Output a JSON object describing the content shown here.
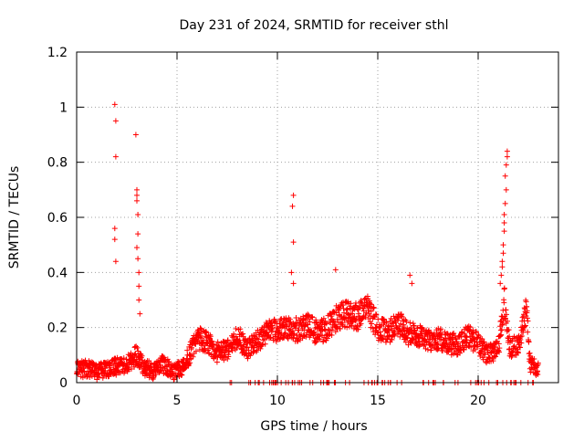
{
  "chart_data": {
    "type": "scatter",
    "title": "Day 231 of 2024, SRMTID for receiver sthl",
    "xlabel": "GPS time / hours",
    "ylabel": "SRMTID / TECUs",
    "xlim": [
      0,
      24
    ],
    "ylim": [
      0,
      1.2
    ],
    "x_ticks": [
      0,
      5,
      10,
      15,
      20
    ],
    "x_tick_labels": [
      "0",
      "5",
      "10",
      "15",
      "20"
    ],
    "y_ticks": [
      0,
      0.2,
      0.4,
      0.6,
      0.8,
      1.0,
      1.2
    ],
    "y_tick_labels": [
      "0",
      "0.2",
      "0.4",
      "0.6",
      "0.8",
      "1",
      "1.2"
    ],
    "grid": true,
    "marker": "+",
    "series_color": "#ff0000",
    "profile": [
      [
        0.0,
        0.05
      ],
      [
        0.5,
        0.05
      ],
      [
        1.0,
        0.04
      ],
      [
        1.5,
        0.05
      ],
      [
        2.0,
        0.06
      ],
      [
        2.5,
        0.07
      ],
      [
        3.0,
        0.1
      ],
      [
        3.3,
        0.06
      ],
      [
        3.8,
        0.04
      ],
      [
        4.2,
        0.07
      ],
      [
        4.8,
        0.04
      ],
      [
        5.2,
        0.05
      ],
      [
        5.6,
        0.1
      ],
      [
        6.0,
        0.16
      ],
      [
        6.5,
        0.15
      ],
      [
        7.0,
        0.11
      ],
      [
        7.5,
        0.12
      ],
      [
        8.0,
        0.17
      ],
      [
        8.5,
        0.12
      ],
      [
        9.0,
        0.15
      ],
      [
        9.5,
        0.18
      ],
      [
        10.0,
        0.19
      ],
      [
        10.5,
        0.2
      ],
      [
        11.0,
        0.19
      ],
      [
        11.5,
        0.21
      ],
      [
        12.0,
        0.18
      ],
      [
        12.5,
        0.2
      ],
      [
        13.0,
        0.24
      ],
      [
        13.5,
        0.25
      ],
      [
        14.0,
        0.24
      ],
      [
        14.5,
        0.27
      ],
      [
        15.0,
        0.2
      ],
      [
        15.5,
        0.18
      ],
      [
        16.0,
        0.22
      ],
      [
        16.5,
        0.18
      ],
      [
        17.0,
        0.17
      ],
      [
        17.5,
        0.15
      ],
      [
        18.0,
        0.16
      ],
      [
        18.5,
        0.14
      ],
      [
        19.0,
        0.14
      ],
      [
        19.5,
        0.17
      ],
      [
        20.0,
        0.14
      ],
      [
        20.5,
        0.1
      ],
      [
        21.0,
        0.12
      ],
      [
        21.3,
        0.3
      ],
      [
        21.6,
        0.12
      ],
      [
        22.0,
        0.14
      ],
      [
        22.4,
        0.26
      ],
      [
        22.6,
        0.06
      ],
      [
        23.0,
        0.05
      ]
    ],
    "spikes": [
      [
        1.9,
        1.01
      ],
      [
        1.95,
        0.95
      ],
      [
        1.95,
        0.82
      ],
      [
        1.9,
        0.56
      ],
      [
        1.9,
        0.52
      ],
      [
        1.95,
        0.44
      ],
      [
        2.95,
        0.9
      ],
      [
        3.0,
        0.7
      ],
      [
        3.0,
        0.68
      ],
      [
        3.0,
        0.66
      ],
      [
        3.05,
        0.61
      ],
      [
        3.05,
        0.54
      ],
      [
        3.0,
        0.49
      ],
      [
        3.05,
        0.45
      ],
      [
        3.1,
        0.4
      ],
      [
        3.1,
        0.35
      ],
      [
        3.1,
        0.3
      ],
      [
        3.15,
        0.25
      ],
      [
        10.8,
        0.68
      ],
      [
        10.75,
        0.64
      ],
      [
        10.8,
        0.51
      ],
      [
        10.7,
        0.4
      ],
      [
        10.8,
        0.36
      ],
      [
        12.9,
        0.41
      ],
      [
        16.6,
        0.39
      ],
      [
        16.7,
        0.36
      ],
      [
        21.45,
        0.84
      ],
      [
        21.45,
        0.82
      ],
      [
        21.4,
        0.79
      ],
      [
        21.35,
        0.75
      ],
      [
        21.4,
        0.7
      ],
      [
        21.35,
        0.65
      ],
      [
        21.3,
        0.61
      ],
      [
        21.3,
        0.58
      ],
      [
        21.3,
        0.55
      ],
      [
        21.25,
        0.5
      ],
      [
        21.25,
        0.47
      ],
      [
        21.2,
        0.44
      ],
      [
        21.2,
        0.42
      ],
      [
        21.15,
        0.39
      ],
      [
        21.1,
        0.36
      ]
    ],
    "sample_step_hours": 0.012,
    "scatter_spread": 0.045,
    "zero_fraction": 0.07,
    "random_seed": 231
  }
}
